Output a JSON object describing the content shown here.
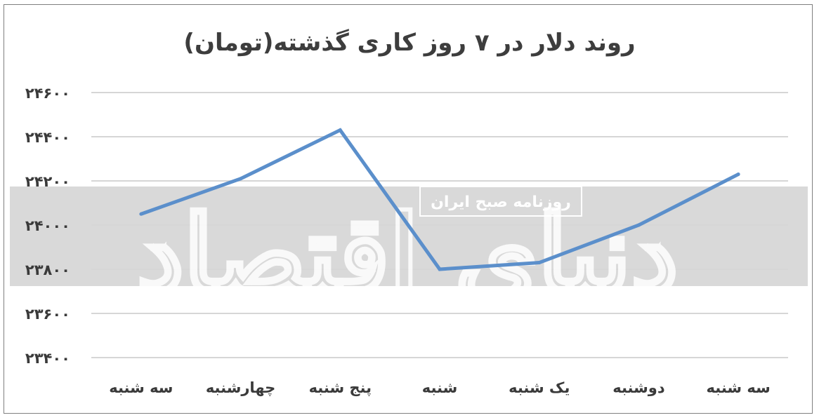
{
  "chart_data": {
    "type": "line",
    "title": "روند دلار در ۷ روز کاری گذشته(تومان)",
    "categories": [
      "سه شنبه",
      "چهارشنبه",
      "پنج شنبه",
      "شنبه",
      "یک شنبه",
      "دوشنبه",
      "سه شنبه"
    ],
    "series": [
      {
        "values": [
          24050,
          24210,
          24430,
          23800,
          23830,
          24000,
          24230
        ]
      }
    ],
    "ylim": [
      23400,
      24600
    ],
    "yticks": [
      23400,
      23600,
      23800,
      24000,
      24200,
      24400,
      24600
    ],
    "ytick_labels": [
      "۲۳۴۰۰",
      "۲۳۶۰۰",
      "۲۳۸۰۰",
      "۲۴۰۰۰",
      "۲۴۲۰۰",
      "۲۴۴۰۰",
      "۲۴۶۰۰"
    ],
    "grid": true,
    "line_color": "#5b8fcb"
  },
  "watermark": {
    "text": "روزنامه صبح ایران",
    "logo": "دنیای اقتصاد",
    "band_color": "#d9d9d9"
  }
}
